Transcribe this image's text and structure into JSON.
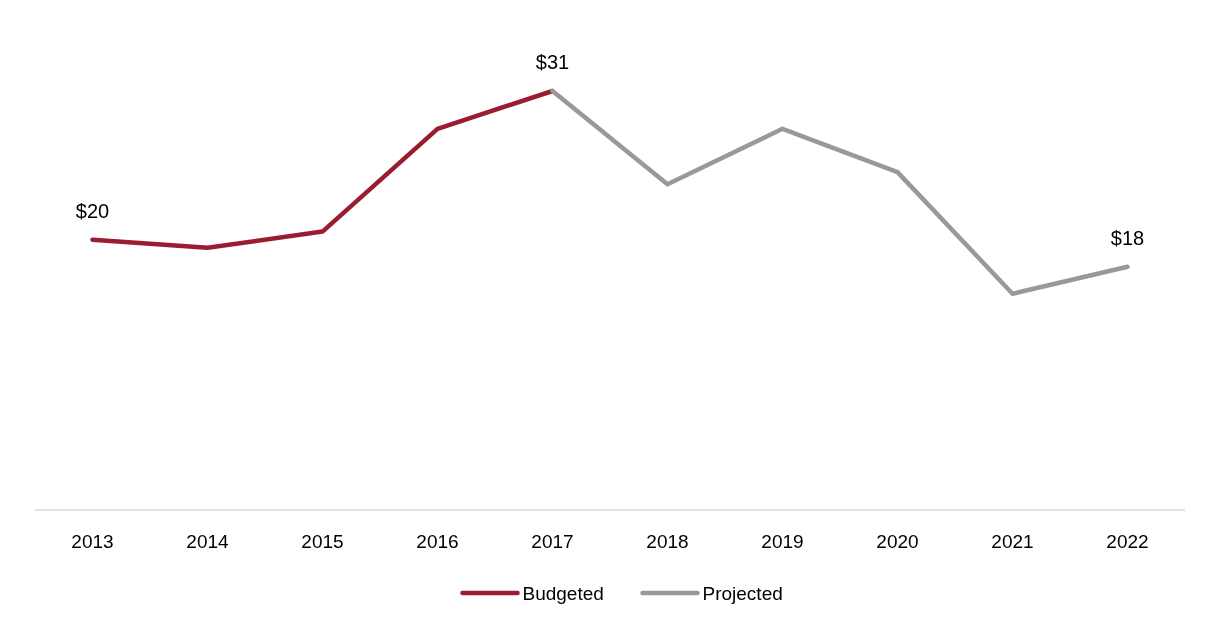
{
  "chart_data": {
    "type": "line",
    "categories": [
      "2013",
      "2014",
      "2015",
      "2016",
      "2017",
      "2018",
      "2019",
      "2020",
      "2021",
      "2022"
    ],
    "series": [
      {
        "name": "Budgeted",
        "color": "#9b1b30",
        "values": [
          20,
          19.4,
          20.6,
          28.2,
          31,
          null,
          null,
          null,
          null,
          null
        ],
        "value_labels": [
          "$20",
          null,
          null,
          null,
          null,
          null,
          null,
          null,
          null,
          null
        ]
      },
      {
        "name": "Projected",
        "color": "#999999",
        "values": [
          null,
          null,
          null,
          null,
          31,
          24.1,
          28.2,
          25,
          16,
          18
        ],
        "value_labels": [
          null,
          null,
          null,
          null,
          "$31",
          null,
          null,
          null,
          null,
          "$18"
        ]
      }
    ],
    "tick_labels": "x",
    "legend": "bottom",
    "marker": "none",
    "line_style": "solid"
  }
}
